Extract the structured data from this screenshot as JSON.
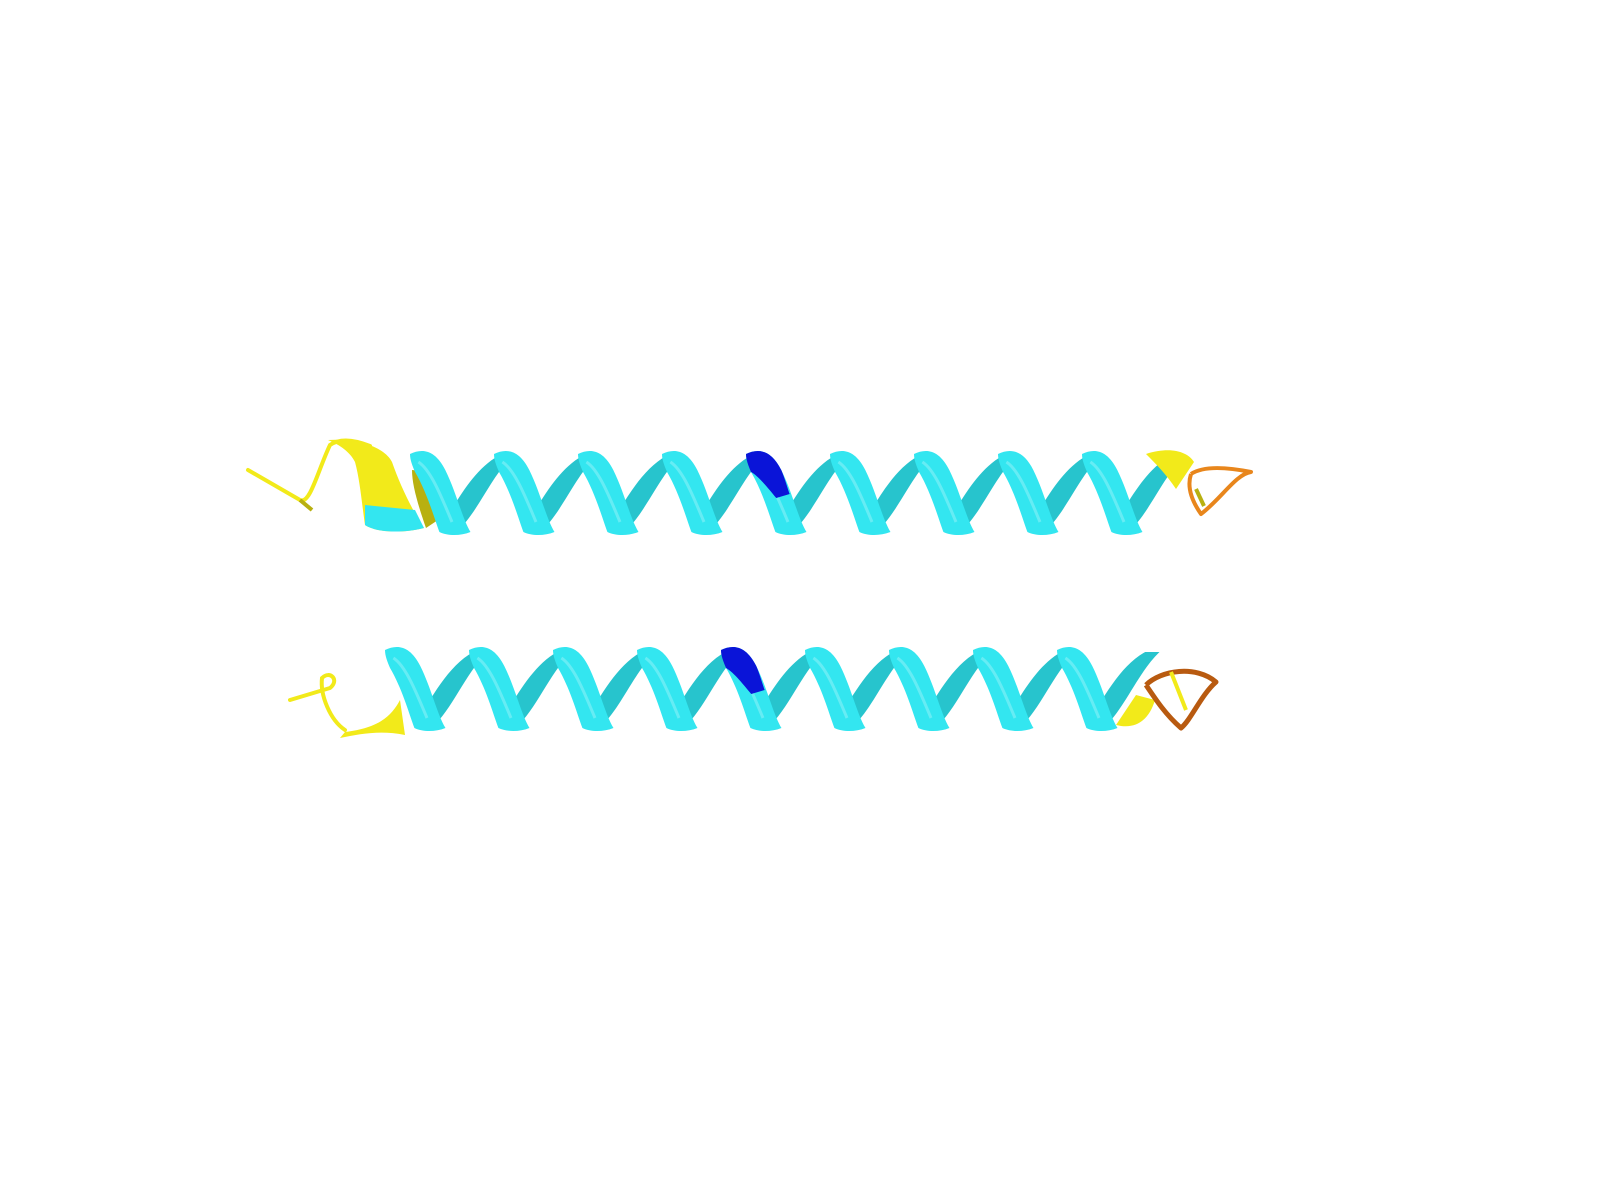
{
  "scene": {
    "background": "#ffffff",
    "colors": {
      "helix": "#33e6f0",
      "helix_shadow": "#1fa9b2",
      "helix_back": "#27c4cd",
      "marker": "#0a14d8",
      "terminal": "#f2ea1a",
      "terminal_shadow": "#b8b010",
      "loop": "#e8861c",
      "loop_dark": "#b85a10"
    },
    "chains": [
      {
        "name": "chain-top",
        "turns": 9,
        "marker_turn": 5
      },
      {
        "name": "chain-bottom",
        "turns": 9,
        "marker_turn": 5
      }
    ]
  }
}
